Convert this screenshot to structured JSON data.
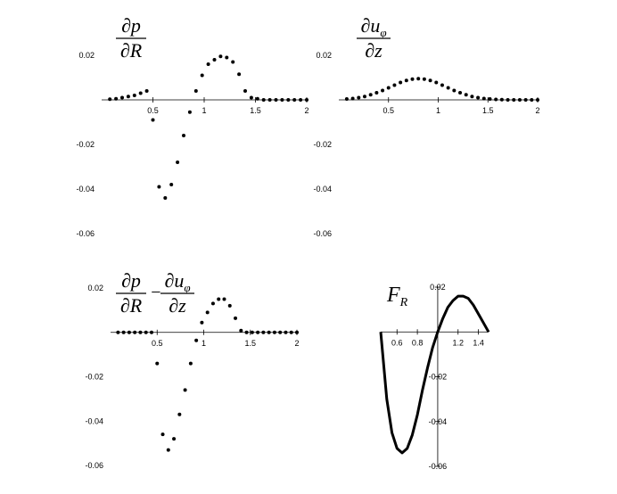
{
  "chart_data": [
    {
      "type": "scatter",
      "title_terms": [
        {
          "num": "∂p",
          "den": "∂R"
        }
      ],
      "x": [
        0.08,
        0.14,
        0.2,
        0.26,
        0.32,
        0.38,
        0.44,
        0.5,
        0.56,
        0.62,
        0.68,
        0.74,
        0.8,
        0.86,
        0.92,
        0.98,
        1.04,
        1.1,
        1.16,
        1.22,
        1.28,
        1.34,
        1.4,
        1.46,
        1.52,
        1.58,
        1.64,
        1.7,
        1.76,
        1.82,
        1.88,
        1.94,
        2.0
      ],
      "values": [
        0.0003,
        0.0005,
        0.001,
        0.0015,
        0.002,
        0.003,
        0.004,
        -0.009,
        -0.039,
        -0.044,
        -0.038,
        -0.028,
        -0.016,
        -0.0055,
        0.004,
        0.011,
        0.016,
        0.018,
        0.0195,
        0.019,
        0.017,
        0.0115,
        0.004,
        0.001,
        0.0005,
        0,
        0,
        0,
        0,
        0,
        0,
        0,
        0
      ],
      "color": "#000000",
      "xlim": [
        0,
        2
      ],
      "ylim": [
        -0.06,
        0.02
      ],
      "xticks": [
        0.5,
        1,
        1.5,
        2
      ],
      "yticks": [
        0.02,
        -0.02,
        -0.04,
        -0.06
      ]
    },
    {
      "type": "scatter",
      "title_terms": [
        {
          "num": "∂u",
          "num_sub": "φ",
          "den": "∂z"
        }
      ],
      "x": [
        0.08,
        0.14,
        0.2,
        0.26,
        0.32,
        0.38,
        0.44,
        0.5,
        0.56,
        0.62,
        0.68,
        0.74,
        0.8,
        0.86,
        0.92,
        0.98,
        1.04,
        1.1,
        1.16,
        1.22,
        1.28,
        1.34,
        1.4,
        1.46,
        1.52,
        1.58,
        1.64,
        1.7,
        1.76,
        1.82,
        1.88,
        1.94,
        2.0
      ],
      "values": [
        0.0004,
        0.0006,
        0.001,
        0.0015,
        0.0023,
        0.0032,
        0.0042,
        0.0054,
        0.0066,
        0.0078,
        0.0087,
        0.0093,
        0.0095,
        0.0093,
        0.0087,
        0.0078,
        0.0066,
        0.0054,
        0.0042,
        0.0032,
        0.0023,
        0.0015,
        0.001,
        0.0006,
        0.0004,
        0.0002,
        0.0001,
        0,
        0,
        0,
        0,
        0,
        0
      ],
      "color": "#000000",
      "xlim": [
        0,
        2
      ],
      "ylim": [
        -0.06,
        0.02
      ],
      "xticks": [
        0.5,
        1,
        1.5,
        2
      ],
      "yticks": [
        0.02,
        -0.02,
        -0.04,
        -0.06
      ]
    },
    {
      "type": "scatter",
      "title_terms": [
        {
          "num": "∂p",
          "den": "∂R"
        },
        {
          "num": "∂u",
          "num_sub": "φ",
          "den": "∂z"
        }
      ],
      "title_operator": "−",
      "x": [
        0.08,
        0.14,
        0.2,
        0.26,
        0.32,
        0.38,
        0.44,
        0.5,
        0.56,
        0.62,
        0.68,
        0.74,
        0.8,
        0.86,
        0.92,
        0.98,
        1.04,
        1.1,
        1.16,
        1.22,
        1.28,
        1.34,
        1.4,
        1.46,
        1.52,
        1.58,
        1.64,
        1.7,
        1.76,
        1.82,
        1.88,
        1.94,
        2.0
      ],
      "values": [
        0,
        0,
        0,
        0,
        0,
        0,
        0,
        -0.014,
        -0.046,
        -0.053,
        -0.048,
        -0.037,
        -0.026,
        -0.014,
        -0.0036,
        0.0044,
        0.009,
        0.013,
        0.015,
        0.015,
        0.012,
        0.0064,
        0.0008,
        0,
        0,
        0,
        0,
        0,
        0,
        0,
        0,
        0,
        0
      ],
      "color": "#000000",
      "xlim": [
        0,
        2
      ],
      "ylim": [
        -0.06,
        0.02
      ],
      "xticks": [
        0.5,
        1,
        1.5,
        2
      ],
      "yticks": [
        0.02,
        -0.02,
        -0.04,
        -0.06
      ]
    },
    {
      "type": "line",
      "title": "F",
      "title_subscript": "R",
      "x": [
        0.44,
        0.5,
        0.55,
        0.6,
        0.65,
        0.7,
        0.75,
        0.8,
        0.85,
        0.9,
        0.95,
        1.0,
        1.05,
        1.1,
        1.15,
        1.2,
        1.25,
        1.3,
        1.35,
        1.4,
        1.45,
        1.5
      ],
      "values": [
        0,
        -0.03,
        -0.045,
        -0.052,
        -0.054,
        -0.052,
        -0.046,
        -0.037,
        -0.026,
        -0.016,
        -0.007,
        0,
        0.006,
        0.011,
        0.014,
        0.016,
        0.016,
        0.015,
        0.012,
        0.008,
        0.004,
        0
      ],
      "color": "#000000",
      "xlim": [
        0.44,
        1.5
      ],
      "ylim": [
        -0.06,
        0.02
      ],
      "xticks": [
        0.6,
        0.8,
        1.2,
        1.4
      ],
      "yticks": [
        0.02,
        -0.02,
        -0.04,
        -0.06
      ]
    }
  ]
}
